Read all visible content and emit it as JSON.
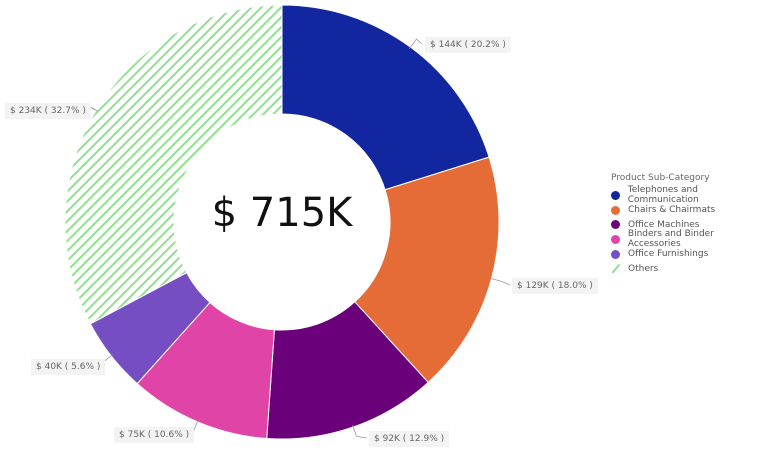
{
  "chart_data": {
    "type": "donut",
    "center_label": "$ 715K",
    "legend_title": "Product Sub-Category",
    "legend_placement": "right",
    "slices": [
      {
        "name": "Telephones and Communication",
        "value_k": 144,
        "percent": 20.2,
        "label": "$ 144K ( 20.2% )",
        "color": "#1226a0"
      },
      {
        "name": "Chairs & Chairmats",
        "value_k": 129,
        "percent": 18.0,
        "label": "$ 129K ( 18.0% )",
        "color": "#e66c37"
      },
      {
        "name": "Office Machines",
        "value_k": 92,
        "percent": 12.9,
        "label": "$ 92K ( 12.9% )",
        "color": "#6b007b"
      },
      {
        "name": "Binders and Binder Accessories",
        "value_k": 75,
        "percent": 10.6,
        "label": "$ 75K ( 10.6% )",
        "color": "#e044a7"
      },
      {
        "name": "Office Furnishings",
        "value_k": 40,
        "percent": 5.6,
        "label": "$ 40K ( 5.6% )",
        "color": "#744ec2"
      },
      {
        "name": "Others",
        "value_k": 234,
        "percent": 32.7,
        "label": "$ 234K ( 32.7% )",
        "color": "#8fe08f",
        "pattern": "hatched"
      }
    ]
  }
}
